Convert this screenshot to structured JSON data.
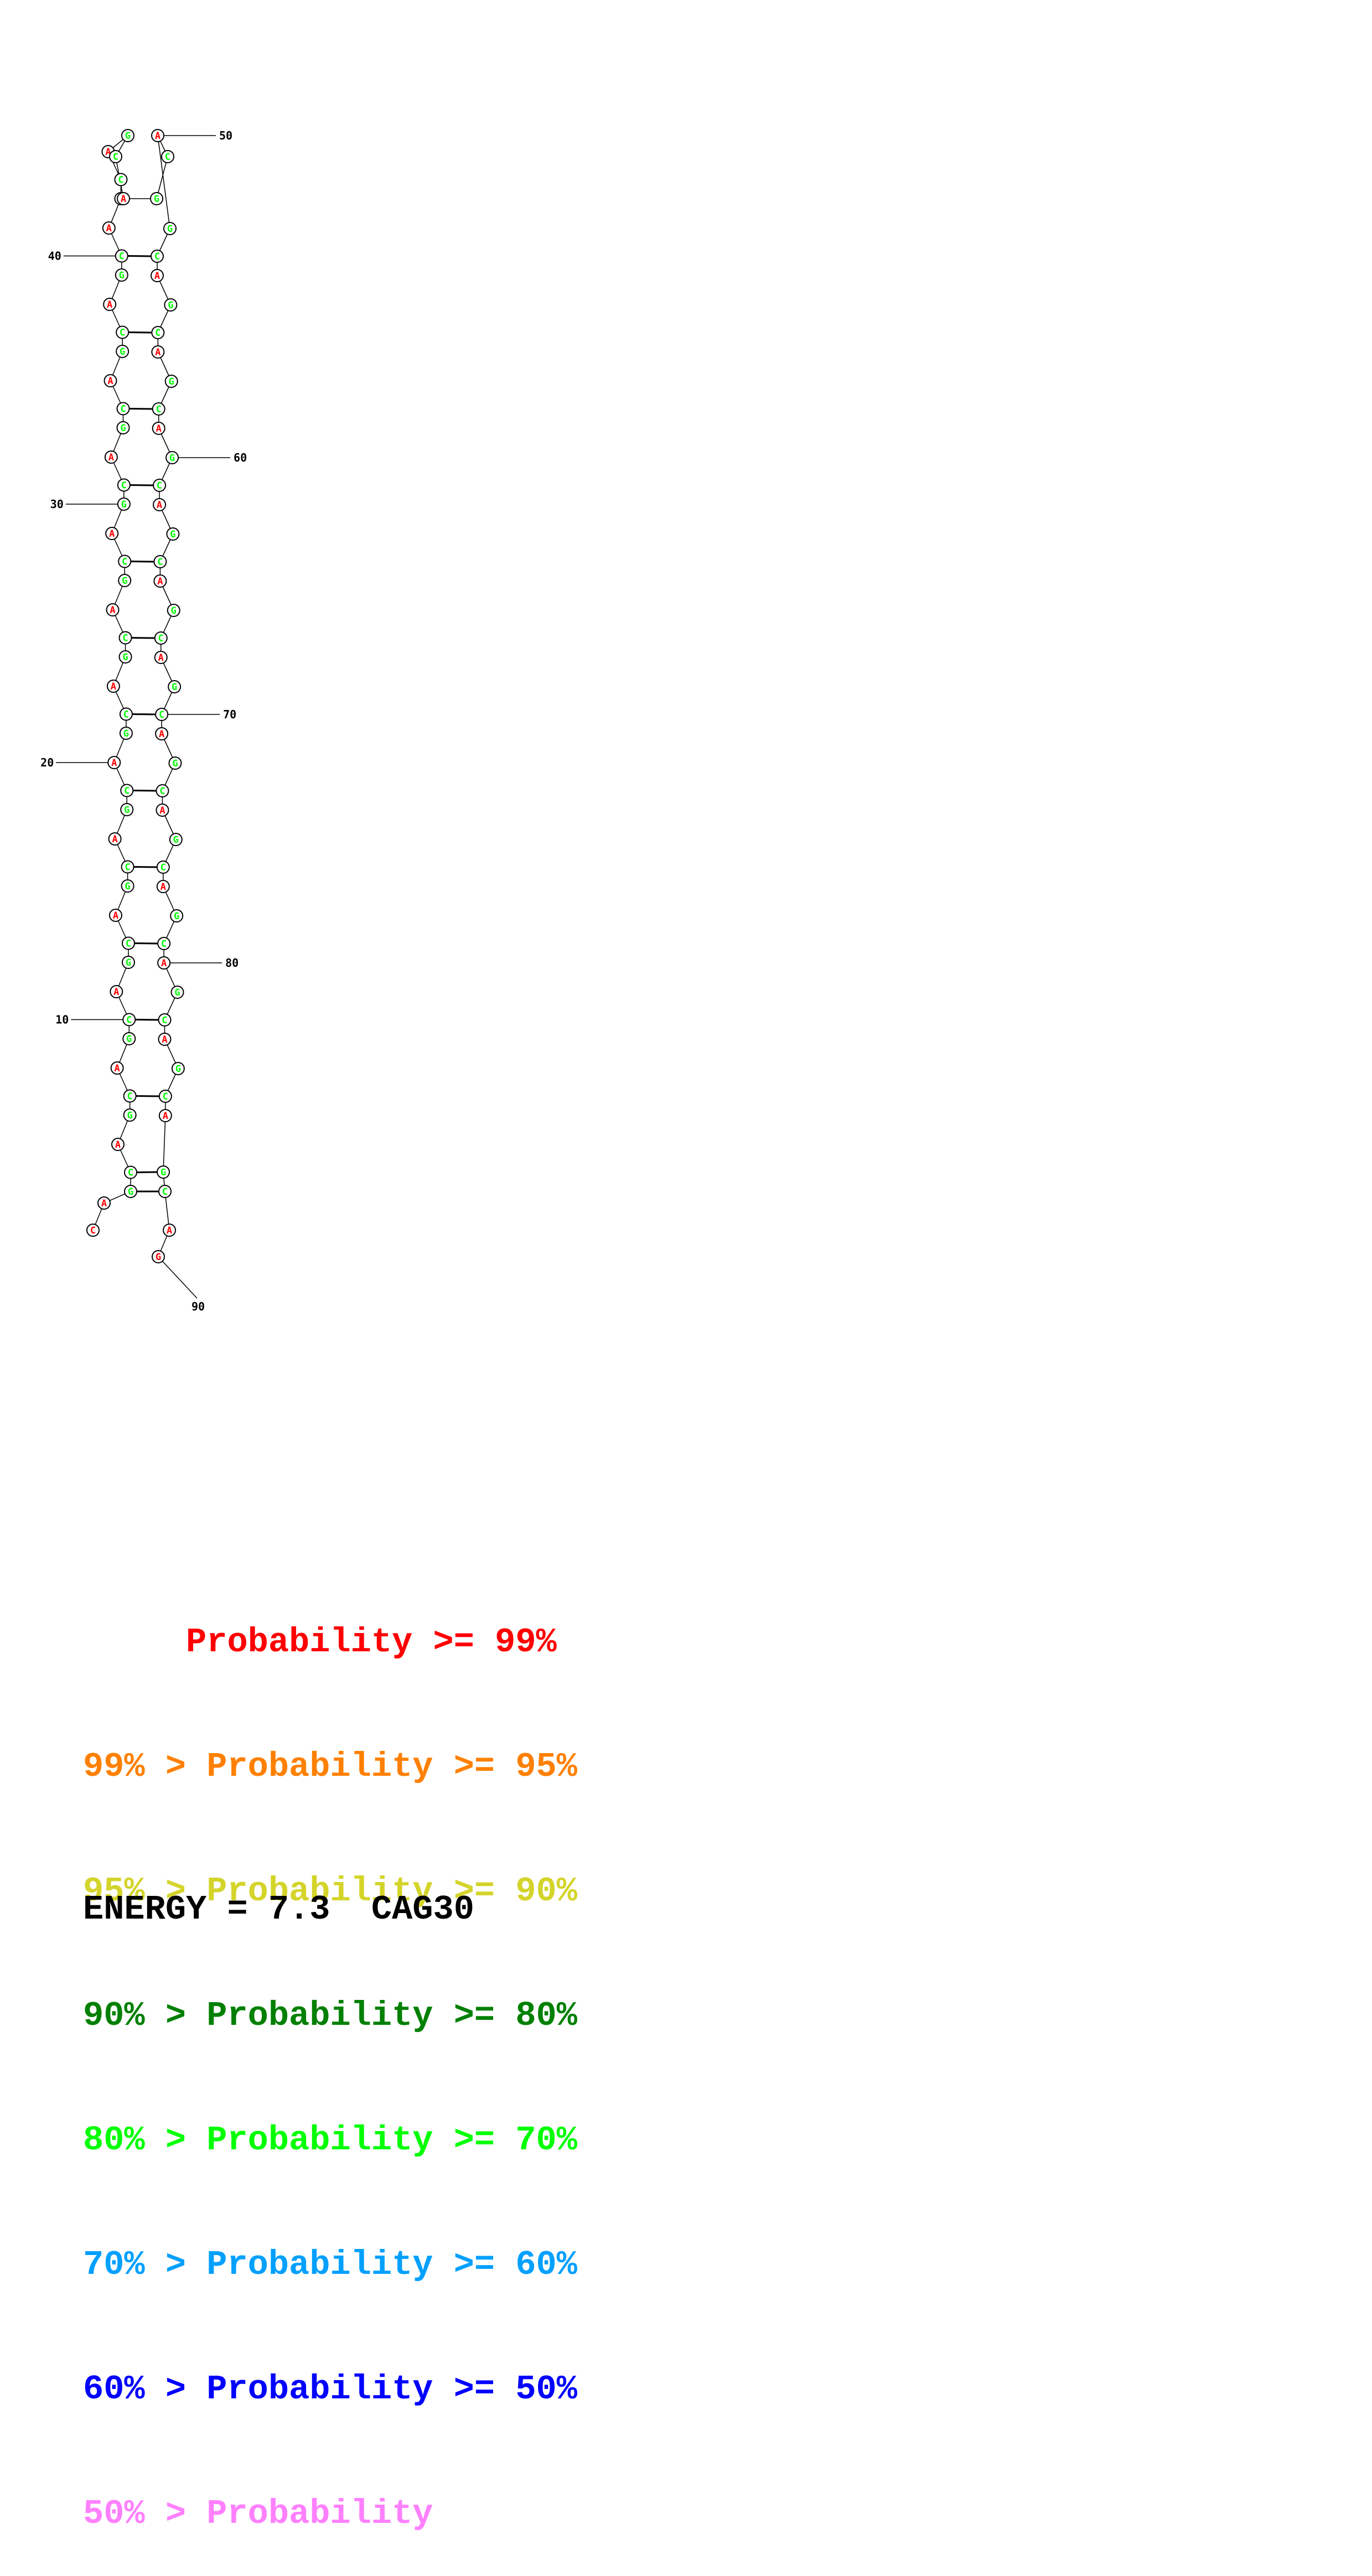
{
  "sequence": "CAGCAGCAGCAGCAGCAGCAGCAGCAGCAGCAGCAGCAGCAGCAGCAGCAGCAGCAGCAGCAGCAGCAGCAGCAGCAGCAGCAGCAGCAG",
  "position_labels": [
    "10",
    "20",
    "30",
    "40",
    "50",
    "60",
    "70",
    "80",
    "90"
  ],
  "probability_colors": {
    "A": "#ff0000",
    "C": "#00ff00",
    "G": "#00ff00",
    "G_terminal": "#ff0000",
    "C_terminal": "#ff0000"
  },
  "legend": [
    {
      "prefix": "    ",
      "text": "Probability >= 99%",
      "color": "#ff0000"
    },
    {
      "prefix": "99% > ",
      "text": "Probability >= 95%",
      "color": "#ff8000"
    },
    {
      "prefix": "95% > ",
      "text": "Probability >= 90%",
      "color": "#d4d42a"
    },
    {
      "prefix": "90% > ",
      "text": "Probability >= 80%",
      "color": "#008000"
    },
    {
      "prefix": "80% > ",
      "text": "Probability >= 70%",
      "color": "#00ff00"
    },
    {
      "prefix": "70% > ",
      "text": "Probability >= 60%",
      "color": "#00a0ff"
    },
    {
      "prefix": "60% > ",
      "text": "Probability >= 50%",
      "color": "#0000ff"
    },
    {
      "prefix": "50% > ",
      "text": "Probability",
      "color": "#ff80ff"
    }
  ],
  "legend_text": {
    "l0": "     Probability >= 99%",
    "l1": "99% > Probability >= 95%",
    "l2": "95% > Probability >= 90%",
    "l3": "90% > Probability >= 80%",
    "l4": "80% > Probability >= 70%",
    "l5": "70% > Probability >= 60%",
    "l6": "60% > Probability >= 50%",
    "l7": "50% > Probability"
  },
  "energy": "ENERGY = 7.3  CAG30"
}
